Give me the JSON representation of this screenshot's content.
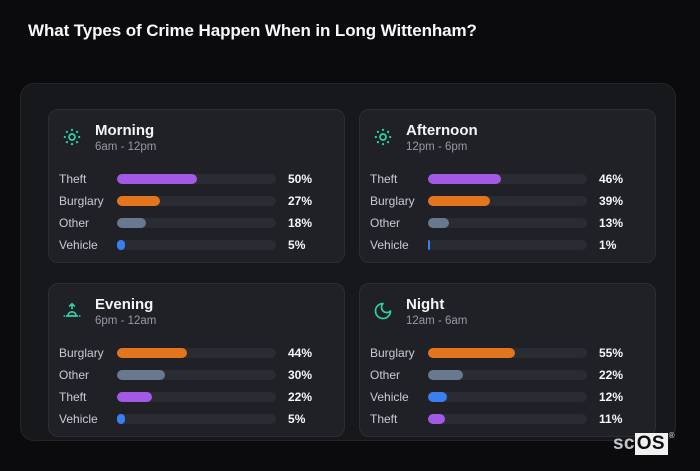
{
  "page": {
    "title": "What Types of Crime Happen When in Long Wittenham?",
    "watermark": {
      "prefix": "sc",
      "brand": "OS",
      "registered": "®"
    }
  },
  "colors": {
    "accent_teal": "#2ed3a3",
    "theft_purple": "#a259e6",
    "burglary_orange": "#e2751d",
    "other_slate": "#68788e",
    "vehicle_blue": "#3b7ef0",
    "track": "#2a2c33",
    "card_bg": "#1f2126",
    "board_bg": "#17181c",
    "page_bg": "#0b0b0e"
  },
  "chart_data": [
    {
      "panel": "morning",
      "type": "bar",
      "orientation": "horizontal",
      "title": "Morning",
      "subtitle": "6am - 12pm",
      "icon": "sun-icon",
      "unit": "%",
      "xlim": [
        0,
        100
      ],
      "grid": false,
      "legend": "none",
      "categories": [
        "Theft",
        "Burglary",
        "Other",
        "Vehicle"
      ],
      "values": [
        50,
        27,
        18,
        5
      ],
      "colors": [
        "#a259e6",
        "#e2751d",
        "#68788e",
        "#3b7ef0"
      ]
    },
    {
      "panel": "afternoon",
      "type": "bar",
      "orientation": "horizontal",
      "title": "Afternoon",
      "subtitle": "12pm - 6pm",
      "icon": "sun-icon",
      "unit": "%",
      "xlim": [
        0,
        100
      ],
      "grid": false,
      "legend": "none",
      "categories": [
        "Theft",
        "Burglary",
        "Other",
        "Vehicle"
      ],
      "values": [
        46,
        39,
        13,
        1
      ],
      "colors": [
        "#a259e6",
        "#e2751d",
        "#68788e",
        "#3b7ef0"
      ]
    },
    {
      "panel": "evening",
      "type": "bar",
      "orientation": "horizontal",
      "title": "Evening",
      "subtitle": "6pm - 12am",
      "icon": "sunrise-icon",
      "unit": "%",
      "xlim": [
        0,
        100
      ],
      "grid": false,
      "legend": "none",
      "categories": [
        "Burglary",
        "Other",
        "Theft",
        "Vehicle"
      ],
      "values": [
        44,
        30,
        22,
        5
      ],
      "colors": [
        "#e2751d",
        "#68788e",
        "#a259e6",
        "#3b7ef0"
      ]
    },
    {
      "panel": "night",
      "type": "bar",
      "orientation": "horizontal",
      "title": "Night",
      "subtitle": "12am - 6am",
      "icon": "moon-icon",
      "unit": "%",
      "xlim": [
        0,
        100
      ],
      "grid": false,
      "legend": "none",
      "categories": [
        "Burglary",
        "Other",
        "Vehicle",
        "Theft"
      ],
      "values": [
        55,
        22,
        12,
        11
      ],
      "colors": [
        "#e2751d",
        "#68788e",
        "#3b7ef0",
        "#a259e6"
      ]
    }
  ]
}
